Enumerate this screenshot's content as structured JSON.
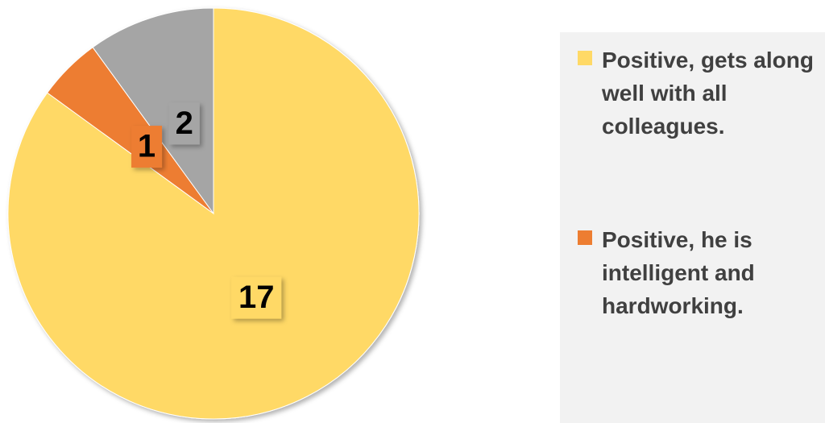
{
  "chart_data": {
    "type": "pie",
    "categories": [
      "Positive, gets along well with all colleagues.",
      "Positive, he is intelligent and hardworking.",
      null
    ],
    "values": [
      17,
      1,
      2
    ],
    "colors": [
      "#FFD966",
      "#ED7D31",
      "#A5A5A5"
    ],
    "legend": "right"
  }
}
